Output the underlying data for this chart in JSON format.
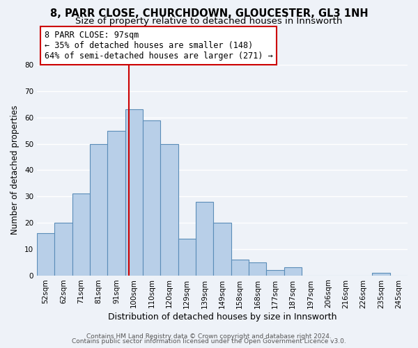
{
  "title1": "8, PARR CLOSE, CHURCHDOWN, GLOUCESTER, GL3 1NH",
  "title2": "Size of property relative to detached houses in Innsworth",
  "xlabel": "Distribution of detached houses by size in Innsworth",
  "ylabel": "Number of detached properties",
  "bins": [
    "52sqm",
    "62sqm",
    "71sqm",
    "81sqm",
    "91sqm",
    "100sqm",
    "110sqm",
    "120sqm",
    "129sqm",
    "139sqm",
    "149sqm",
    "158sqm",
    "168sqm",
    "177sqm",
    "187sqm",
    "197sqm",
    "206sqm",
    "216sqm",
    "226sqm",
    "235sqm",
    "245sqm"
  ],
  "values": [
    16,
    20,
    31,
    50,
    55,
    63,
    59,
    50,
    14,
    28,
    20,
    6,
    5,
    2,
    3,
    0,
    0,
    0,
    0,
    1,
    0
  ],
  "bar_color": "#b8cfe8",
  "bar_edge_color": "#5b8db8",
  "bar_linewidth": 0.8,
  "vline_x_idx": 4.72,
  "vline_color": "#cc0000",
  "annotation_line1": "8 PARR CLOSE: 97sqm",
  "annotation_line2": "← 35% of detached houses are smaller (148)",
  "annotation_line3": "64% of semi-detached houses are larger (271) →",
  "annotation_box_color": "#ffffff",
  "annotation_box_edge": "#cc0000",
  "ylim": [
    0,
    80
  ],
  "yticks": [
    0,
    10,
    20,
    30,
    40,
    50,
    60,
    70,
    80
  ],
  "footer1": "Contains HM Land Registry data © Crown copyright and database right 2024.",
  "footer2": "Contains public sector information licensed under the Open Government Licence v3.0.",
  "background_color": "#eef2f8",
  "grid_color": "#ffffff",
  "title1_fontsize": 10.5,
  "title2_fontsize": 9.5,
  "xlabel_fontsize": 9,
  "ylabel_fontsize": 8.5,
  "tick_fontsize": 7.5,
  "annotation_fontsize": 8.5,
  "footer_fontsize": 6.5
}
